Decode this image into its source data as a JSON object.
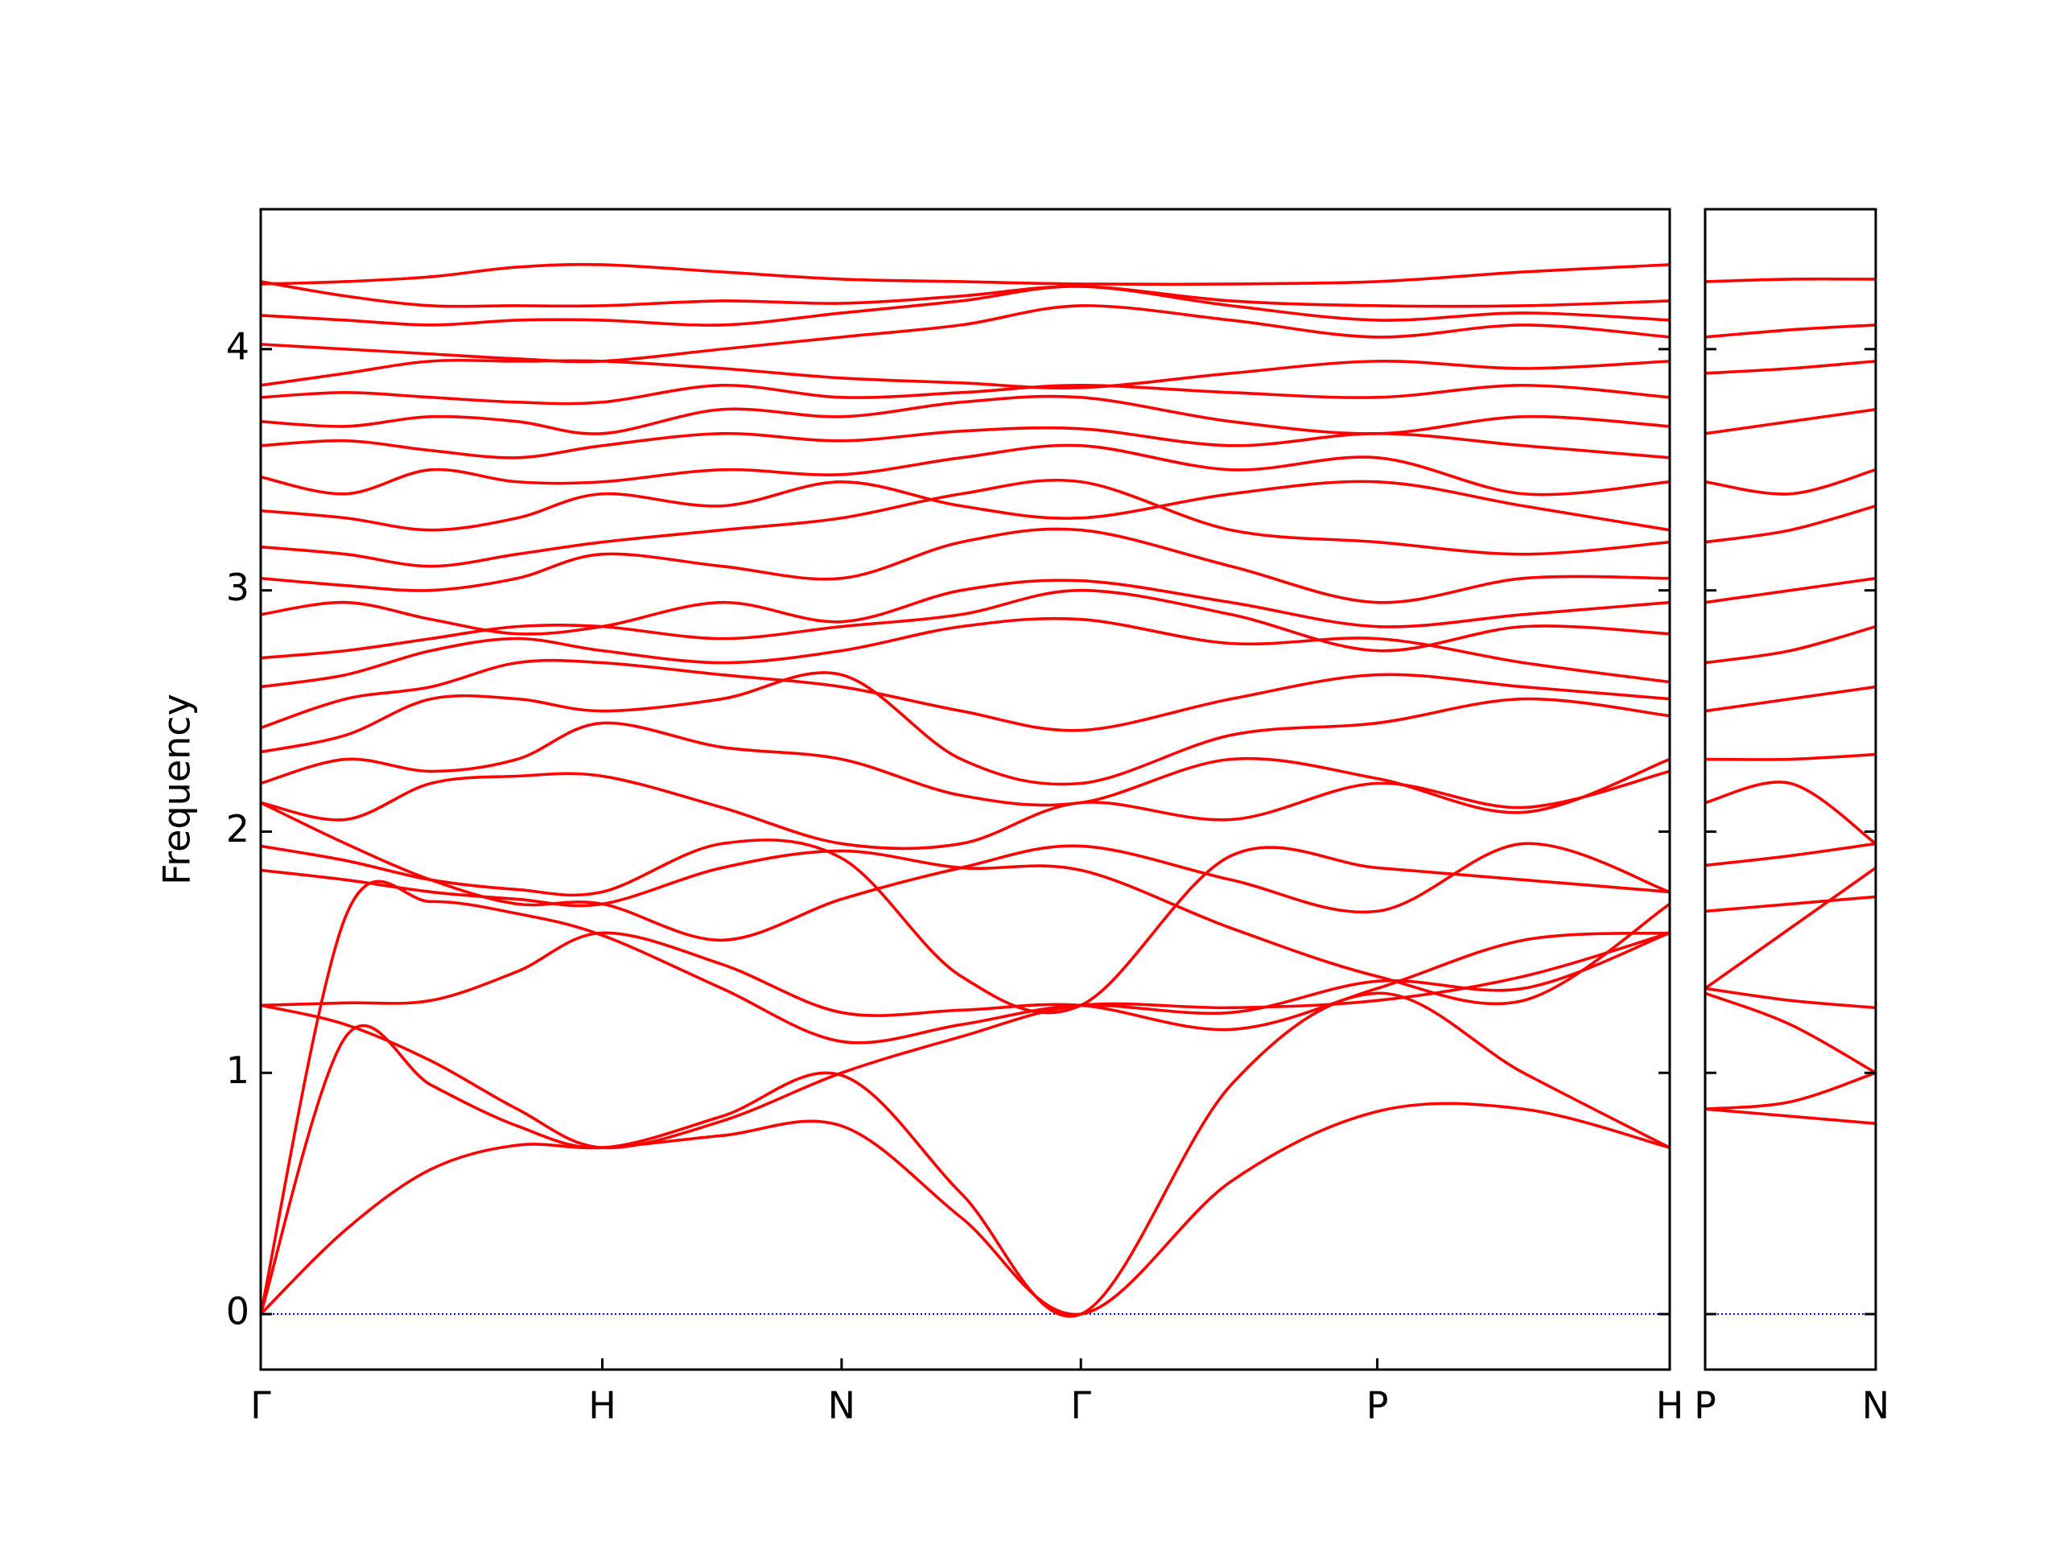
{
  "chart_data": [
    {
      "type": "line",
      "ylabel": "Frequency",
      "line_color": "#ff0000",
      "xlim": [
        0,
        1.06
      ],
      "ylim": [
        -0.23,
        4.58
      ],
      "xticks": [
        {
          "value": 0,
          "label": "Γ"
        },
        {
          "value": 0.257,
          "label": "H"
        },
        {
          "value": 0.437,
          "label": "N"
        },
        {
          "value": 0.617,
          "label": "Γ"
        },
        {
          "value": 0.84,
          "label": "P"
        },
        {
          "value": 1.06,
          "label": "H"
        }
      ],
      "yticks": [
        0,
        1,
        2,
        3,
        4
      ],
      "show_ytick_labels": true,
      "hlines": [
        0
      ],
      "hline_color": "#0000ff",
      "x": [
        0,
        0.064,
        0.128,
        0.193,
        0.257,
        0.347,
        0.437,
        0.527,
        0.617,
        0.73,
        0.84,
        0.95,
        1.06
      ],
      "series": [
        {
          "values": [
            0,
            0.35,
            0.6,
            0.7,
            0.69,
            0.74,
            0.78,
            0.4,
            0,
            0.55,
            0.84,
            0.85,
            0.69
          ]
        },
        {
          "values": [
            0,
            1.15,
            0.95,
            0.78,
            0.69,
            0.82,
            0.99,
            0.5,
            0,
            0.95,
            1.33,
            1.0,
            0.69
          ]
        },
        {
          "values": [
            0,
            1.65,
            1.71,
            1.66,
            1.57,
            1.35,
            1.13,
            1.2,
            1.28,
            1.25,
            1.38,
            1.35,
            1.58
          ]
        },
        {
          "values": [
            1.28,
            1.29,
            1.3,
            1.42,
            1.58,
            1.45,
            1.25,
            1.26,
            1.28,
            1.18,
            1.35,
            1.55,
            1.58
          ]
        },
        {
          "values": [
            1.28,
            1.2,
            1.05,
            0.85,
            0.69,
            0.8,
            1.0,
            1.15,
            1.28,
            1.27,
            1.3,
            1.4,
            1.58
          ]
        },
        {
          "values": [
            1.84,
            1.8,
            1.75,
            1.72,
            1.7,
            1.85,
            1.92,
            1.85,
            1.84,
            1.6,
            1.4,
            1.3,
            1.7
          ]
        },
        {
          "values": [
            1.94,
            1.88,
            1.8,
            1.76,
            1.75,
            1.95,
            1.89,
            1.4,
            1.28,
            1.9,
            1.85,
            1.8,
            1.75
          ]
        },
        {
          "values": [
            2.12,
            1.95,
            1.8,
            1.7,
            1.7,
            1.55,
            1.72,
            1.85,
            1.94,
            1.8,
            1.67,
            1.95,
            1.75
          ]
        },
        {
          "values": [
            2.12,
            2.05,
            2.2,
            2.23,
            2.23,
            2.1,
            1.95,
            1.95,
            2.12,
            2.05,
            2.2,
            2.1,
            2.25
          ]
        },
        {
          "values": [
            2.2,
            2.3,
            2.25,
            2.3,
            2.45,
            2.35,
            2.3,
            2.15,
            2.12,
            2.3,
            2.22,
            2.08,
            2.3
          ]
        },
        {
          "values": [
            2.33,
            2.4,
            2.55,
            2.55,
            2.5,
            2.55,
            2.65,
            2.3,
            2.2,
            2.4,
            2.45,
            2.55,
            2.48
          ]
        },
        {
          "values": [
            2.43,
            2.55,
            2.6,
            2.7,
            2.7,
            2.65,
            2.6,
            2.5,
            2.42,
            2.55,
            2.65,
            2.6,
            2.55
          ]
        },
        {
          "values": [
            2.6,
            2.65,
            2.75,
            2.8,
            2.75,
            2.7,
            2.75,
            2.85,
            2.88,
            2.78,
            2.8,
            2.7,
            2.62
          ]
        },
        {
          "values": [
            2.72,
            2.75,
            2.8,
            2.85,
            2.85,
            2.8,
            2.85,
            2.9,
            3.0,
            2.9,
            2.75,
            2.85,
            2.82
          ]
        },
        {
          "values": [
            2.9,
            2.95,
            2.88,
            2.82,
            2.85,
            2.95,
            2.87,
            3.0,
            3.04,
            2.95,
            2.85,
            2.9,
            2.95
          ]
        },
        {
          "values": [
            3.05,
            3.02,
            3.0,
            3.05,
            3.15,
            3.1,
            3.05,
            3.2,
            3.25,
            3.1,
            2.95,
            3.05,
            3.05
          ]
        },
        {
          "values": [
            3.18,
            3.15,
            3.1,
            3.15,
            3.2,
            3.25,
            3.3,
            3.4,
            3.45,
            3.25,
            3.2,
            3.15,
            3.2
          ]
        },
        {
          "values": [
            3.33,
            3.3,
            3.25,
            3.3,
            3.4,
            3.35,
            3.45,
            3.35,
            3.3,
            3.4,
            3.45,
            3.35,
            3.25
          ]
        },
        {
          "values": [
            3.47,
            3.4,
            3.5,
            3.45,
            3.45,
            3.5,
            3.48,
            3.55,
            3.6,
            3.5,
            3.55,
            3.4,
            3.45
          ]
        },
        {
          "values": [
            3.6,
            3.62,
            3.58,
            3.55,
            3.6,
            3.65,
            3.62,
            3.66,
            3.67,
            3.6,
            3.65,
            3.6,
            3.55
          ]
        },
        {
          "values": [
            3.7,
            3.68,
            3.72,
            3.7,
            3.65,
            3.75,
            3.72,
            3.78,
            3.8,
            3.7,
            3.65,
            3.72,
            3.68
          ]
        },
        {
          "values": [
            3.8,
            3.82,
            3.8,
            3.78,
            3.78,
            3.85,
            3.8,
            3.82,
            3.85,
            3.82,
            3.8,
            3.85,
            3.8
          ]
        },
        {
          "values": [
            3.85,
            3.9,
            3.95,
            3.95,
            3.95,
            3.92,
            3.88,
            3.86,
            3.84,
            3.9,
            3.95,
            3.92,
            3.95
          ]
        },
        {
          "values": [
            4.02,
            4.0,
            3.98,
            3.96,
            3.95,
            4.0,
            4.05,
            4.1,
            4.18,
            4.12,
            4.05,
            4.1,
            4.05
          ]
        },
        {
          "values": [
            4.14,
            4.12,
            4.1,
            4.12,
            4.12,
            4.1,
            4.15,
            4.2,
            4.26,
            4.18,
            4.12,
            4.15,
            4.12
          ]
        },
        {
          "values": [
            4.27,
            4.28,
            4.3,
            4.34,
            4.35,
            4.32,
            4.29,
            4.28,
            4.27,
            4.27,
            4.28,
            4.32,
            4.35
          ]
        },
        {
          "values": [
            4.28,
            4.22,
            4.18,
            4.18,
            4.18,
            4.2,
            4.19,
            4.22,
            4.26,
            4.2,
            4.18,
            4.18,
            4.2
          ]
        }
      ]
    },
    {
      "type": "line",
      "line_color": "#ff0000",
      "xlim": [
        0,
        0.128
      ],
      "ylim": [
        -0.23,
        4.58
      ],
      "xticks": [
        {
          "value": 0,
          "label": "P"
        },
        {
          "value": 0.128,
          "label": "N"
        }
      ],
      "yticks": [
        0,
        1,
        2,
        3,
        4
      ],
      "show_ytick_labels": false,
      "hlines": [
        0
      ],
      "hline_color": "#0000ff",
      "x": [
        0,
        0.064,
        0.128
      ],
      "series": [
        {
          "values": [
            0.85,
            0.88,
            1.0
          ]
        },
        {
          "values": [
            0.85,
            0.82,
            0.79
          ]
        },
        {
          "values": [
            1.33,
            1.2,
            1.0
          ]
        },
        {
          "values": [
            1.35,
            1.3,
            1.27
          ]
        },
        {
          "values": [
            1.35,
            1.6,
            1.85
          ]
        },
        {
          "values": [
            1.67,
            1.7,
            1.73
          ]
        },
        {
          "values": [
            1.86,
            1.9,
            1.95
          ]
        },
        {
          "values": [
            2.12,
            2.2,
            1.95
          ]
        },
        {
          "values": [
            2.3,
            2.3,
            2.32
          ]
        },
        {
          "values": [
            2.5,
            2.55,
            2.6
          ]
        },
        {
          "values": [
            2.7,
            2.75,
            2.85
          ]
        },
        {
          "values": [
            2.95,
            3.0,
            3.05
          ]
        },
        {
          "values": [
            3.2,
            3.25,
            3.35
          ]
        },
        {
          "values": [
            3.45,
            3.4,
            3.5
          ]
        },
        {
          "values": [
            3.65,
            3.7,
            3.75
          ]
        },
        {
          "values": [
            3.9,
            3.92,
            3.95
          ]
        },
        {
          "values": [
            4.05,
            4.08,
            4.1
          ]
        },
        {
          "values": [
            4.28,
            4.29,
            4.29
          ]
        }
      ]
    }
  ]
}
